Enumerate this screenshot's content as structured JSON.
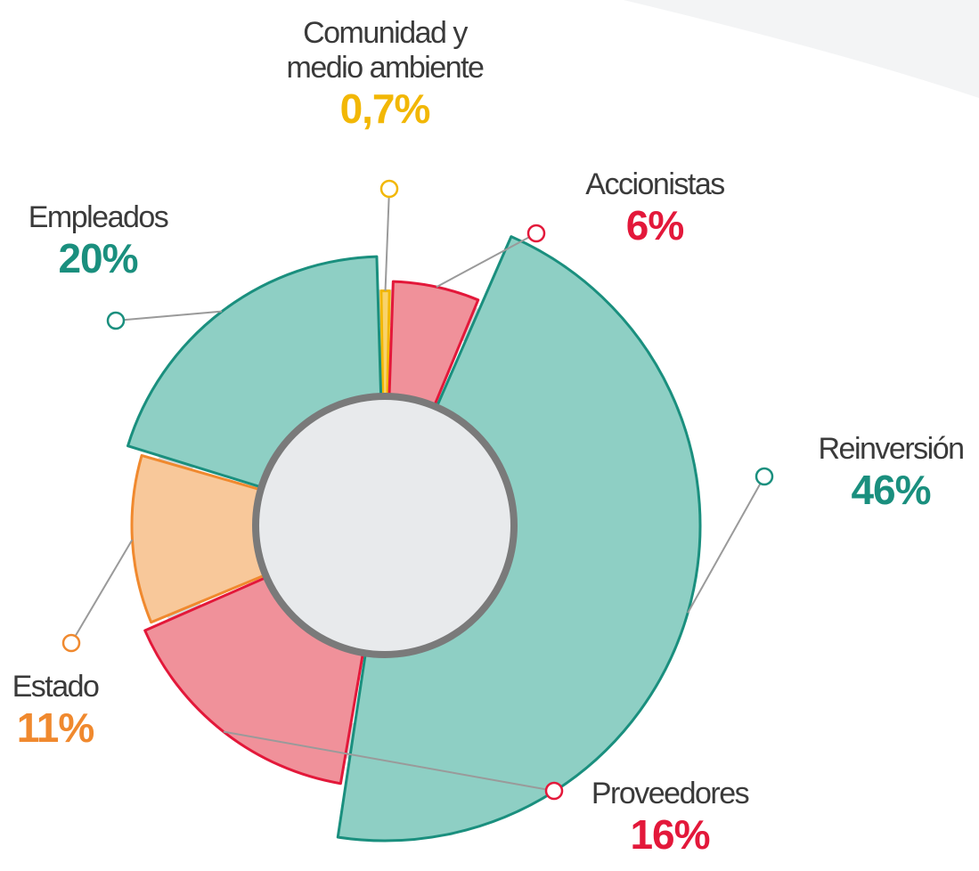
{
  "chart_data": {
    "type": "pie",
    "categories": [
      "Comunidad y\nmedio ambiente",
      "Accionistas",
      "Reinversión",
      "Proveedores",
      "Estado",
      "Empleados"
    ],
    "values": [
      0.7,
      6,
      46,
      16,
      11,
      20
    ],
    "value_labels": [
      "0,7%",
      "6%",
      "46%",
      "16%",
      "11%",
      "20%"
    ],
    "colors": [
      "#f9d36b",
      "#f0919a",
      "#8ecfc4",
      "#f0919a",
      "#f8c89a",
      "#8ecfc4"
    ],
    "edge_colors": [
      "#f2b705",
      "#e3183a",
      "#1a8f7e",
      "#e3183a",
      "#f0892e",
      "#1a8f7e"
    ]
  }
}
